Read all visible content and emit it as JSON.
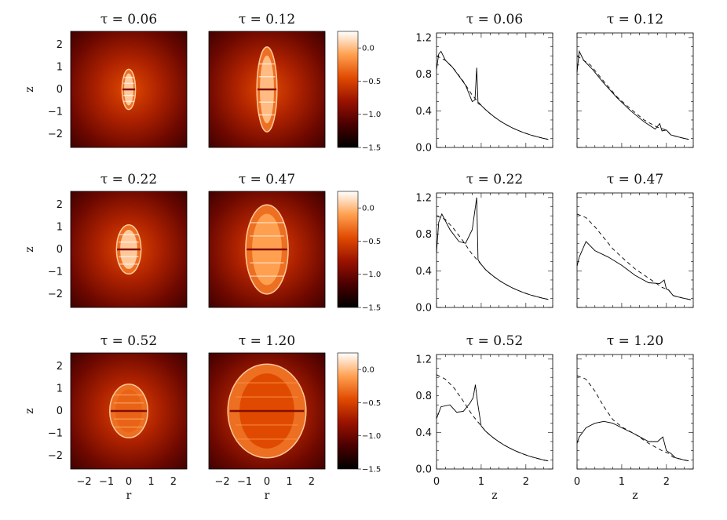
{
  "chart_data": {
    "type": "figure",
    "maps": {
      "type": "heatmap",
      "xlabel": "r",
      "ylabel": "z",
      "xticks": [
        "−2",
        "−1",
        "0",
        "1",
        "2"
      ],
      "yticks": [
        "2",
        "1",
        "0",
        "−1",
        "−2"
      ],
      "xlim": [
        -2.6,
        2.6
      ],
      "ylim": [
        -2.6,
        2.6
      ],
      "colorbar_ticks": [
        "0.0",
        "−0.5",
        "−1.0",
        "−1.5"
      ],
      "colorbar_range": [
        -1.5,
        0.25
      ],
      "panels": [
        {
          "title": "τ = 0.06",
          "a": 0.3,
          "b": 0.9,
          "inner": 0.05
        },
        {
          "title": "τ = 0.12",
          "a": 0.45,
          "b": 1.9,
          "inner": 0.0
        },
        {
          "title": "τ = 0.22",
          "a": 0.55,
          "b": 1.1,
          "inner": 0.05
        },
        {
          "title": "τ = 0.47",
          "a": 0.95,
          "b": 2.0,
          "inner": -0.1
        },
        {
          "title": "τ = 0.52",
          "a": 0.85,
          "b": 1.2,
          "inner": -0.35
        },
        {
          "title": "τ = 1.20",
          "a": 1.75,
          "b": 2.1,
          "inner": -0.45
        }
      ]
    },
    "profiles": {
      "type": "line",
      "xlabel": "z",
      "xticks": [
        "0",
        "1",
        "2"
      ],
      "yticks": [
        "1.2",
        "0.8",
        "0.4",
        "0.0"
      ],
      "xlim": [
        0,
        2.6
      ],
      "ylim": [
        0,
        1.25
      ],
      "panels": [
        {
          "title": "τ = 0.06",
          "dashed": [
            [
              0,
              1.0
            ],
            [
              0.2,
              0.95
            ],
            [
              0.4,
              0.85
            ],
            [
              0.6,
              0.72
            ],
            [
              0.8,
              0.57
            ],
            [
              1.0,
              0.46
            ]
          ],
          "solid": [
            [
              0,
              0.85
            ],
            [
              0.05,
              1.02
            ],
            [
              0.1,
              1.05
            ],
            [
              0.2,
              0.95
            ],
            [
              0.35,
              0.88
            ],
            [
              0.5,
              0.78
            ],
            [
              0.65,
              0.68
            ],
            [
              0.8,
              0.5
            ],
            [
              0.86,
              0.52
            ],
            [
              0.9,
              0.87
            ],
            [
              0.93,
              0.48
            ],
            [
              1.0,
              0.46
            ]
          ]
        },
        {
          "title": "τ = 0.12",
          "dashed": [
            [
              0,
              1.0
            ],
            [
              0.3,
              0.9
            ],
            [
              0.6,
              0.72
            ],
            [
              0.9,
              0.55
            ],
            [
              1.2,
              0.42
            ],
            [
              1.5,
              0.3
            ],
            [
              1.8,
              0.22
            ],
            [
              2.0,
              0.19
            ]
          ],
          "solid": [
            [
              0,
              0.82
            ],
            [
              0.05,
              1.05
            ],
            [
              0.15,
              0.95
            ],
            [
              0.35,
              0.85
            ],
            [
              0.6,
              0.7
            ],
            [
              0.9,
              0.54
            ],
            [
              1.2,
              0.4
            ],
            [
              1.5,
              0.28
            ],
            [
              1.75,
              0.2
            ],
            [
              1.85,
              0.26
            ],
            [
              1.9,
              0.18
            ],
            [
              2.0,
              0.19
            ]
          ]
        },
        {
          "title": "τ = 0.22",
          "dashed": [
            [
              0,
              1.0
            ],
            [
              0.2,
              0.96
            ],
            [
              0.4,
              0.85
            ],
            [
              0.6,
              0.72
            ],
            [
              0.8,
              0.58
            ],
            [
              1.0,
              0.47
            ]
          ],
          "solid": [
            [
              0,
              0.6
            ],
            [
              0.05,
              0.93
            ],
            [
              0.12,
              1.02
            ],
            [
              0.3,
              0.85
            ],
            [
              0.5,
              0.72
            ],
            [
              0.65,
              0.7
            ],
            [
              0.8,
              0.85
            ],
            [
              0.9,
              1.2
            ],
            [
              0.93,
              0.52
            ],
            [
              1.0,
              0.47
            ]
          ]
        },
        {
          "title": "τ = 0.47",
          "dashed": [
            [
              0,
              1.02
            ],
            [
              0.2,
              0.98
            ],
            [
              0.4,
              0.88
            ],
            [
              0.6,
              0.76
            ],
            [
              0.8,
              0.64
            ],
            [
              1.0,
              0.55
            ],
            [
              1.3,
              0.42
            ],
            [
              1.6,
              0.32
            ],
            [
              1.9,
              0.22
            ],
            [
              2.05,
              0.19
            ]
          ],
          "solid": [
            [
              0,
              0.45
            ],
            [
              0.05,
              0.55
            ],
            [
              0.2,
              0.72
            ],
            [
              0.4,
              0.62
            ],
            [
              0.7,
              0.55
            ],
            [
              1.0,
              0.46
            ],
            [
              1.3,
              0.35
            ],
            [
              1.6,
              0.27
            ],
            [
              1.85,
              0.26
            ],
            [
              1.95,
              0.3
            ],
            [
              2.0,
              0.2
            ],
            [
              2.05,
              0.19
            ]
          ]
        },
        {
          "title": "τ = 0.52",
          "dashed": [
            [
              0,
              1.03
            ],
            [
              0.2,
              0.98
            ],
            [
              0.4,
              0.88
            ],
            [
              0.6,
              0.74
            ],
            [
              0.8,
              0.59
            ],
            [
              1.0,
              0.47
            ]
          ],
          "solid": [
            [
              0,
              0.55
            ],
            [
              0.1,
              0.68
            ],
            [
              0.3,
              0.7
            ],
            [
              0.45,
              0.62
            ],
            [
              0.6,
              0.63
            ],
            [
              0.75,
              0.72
            ],
            [
              0.82,
              0.78
            ],
            [
              0.87,
              0.92
            ],
            [
              0.92,
              0.72
            ],
            [
              1.0,
              0.47
            ]
          ]
        },
        {
          "title": "τ = 1.20",
          "dashed": [
            [
              0,
              1.02
            ],
            [
              0.2,
              0.98
            ],
            [
              0.4,
              0.85
            ],
            [
              0.6,
              0.68
            ],
            [
              0.8,
              0.54
            ],
            [
              1.0,
              0.46
            ],
            [
              1.3,
              0.38
            ],
            [
              1.6,
              0.28
            ],
            [
              1.9,
              0.2
            ],
            [
              2.05,
              0.17
            ]
          ],
          "solid": [
            [
              0,
              0.28
            ],
            [
              0.05,
              0.35
            ],
            [
              0.2,
              0.45
            ],
            [
              0.4,
              0.5
            ],
            [
              0.6,
              0.52
            ],
            [
              0.8,
              0.5
            ],
            [
              1.0,
              0.45
            ],
            [
              1.3,
              0.38
            ],
            [
              1.6,
              0.3
            ],
            [
              1.8,
              0.3
            ],
            [
              1.92,
              0.35
            ],
            [
              2.0,
              0.2
            ],
            [
              2.1,
              0.17
            ]
          ]
        }
      ],
      "tail": "exp"
    }
  }
}
